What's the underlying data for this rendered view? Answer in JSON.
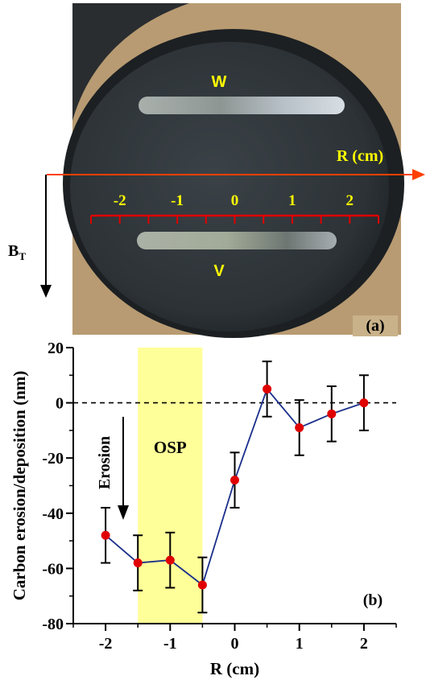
{
  "photo": {
    "panel_label": "(a)",
    "strip_top_label": "W",
    "strip_bottom_label": "V",
    "axis_label": "R (cm)",
    "scale_ticks": [
      "-2",
      "-1",
      "0",
      "1",
      "2"
    ],
    "bt_label": "B",
    "bt_subscript": "T",
    "colors": {
      "annotation": "#ffff00",
      "scale": "#e00000",
      "axis_arrow": "#ff4000",
      "probe": "#2f3539"
    }
  },
  "chart_data": {
    "type": "line",
    "panel_label": "(b)",
    "xlabel": "R (cm)",
    "ylabel": "Carbon erosion/deposition (nm)",
    "xlim": [
      -2.5,
      2.5
    ],
    "ylim": [
      -80,
      20
    ],
    "x_ticks": [
      "-2",
      "-1",
      "0",
      "1",
      "2"
    ],
    "y_ticks": [
      "20",
      "0",
      "-20",
      "-40",
      "-60",
      "-80"
    ],
    "x_tick_values": [
      -2,
      -1,
      0,
      1,
      2
    ],
    "y_tick_values": [
      20,
      0,
      -20,
      -40,
      -60,
      -80
    ],
    "series": [
      {
        "x": [
          -2,
          -1.5,
          -1,
          -0.5,
          0,
          0.5,
          1,
          1.5,
          2
        ],
        "y": [
          -48,
          -58,
          -57,
          -66,
          -28,
          5,
          -9,
          -4,
          0
        ],
        "yerr": [
          10,
          10,
          10,
          10,
          10,
          10,
          10,
          10,
          10
        ],
        "line_color": "#1a2e8a",
        "marker_color": "#e00000"
      }
    ],
    "shaded_region": {
      "x": [
        -1.5,
        -0.5
      ],
      "label": "OSP",
      "color": "#ffff99"
    },
    "reference_line_y": 0,
    "annotation": {
      "text": "Erosion"
    }
  }
}
